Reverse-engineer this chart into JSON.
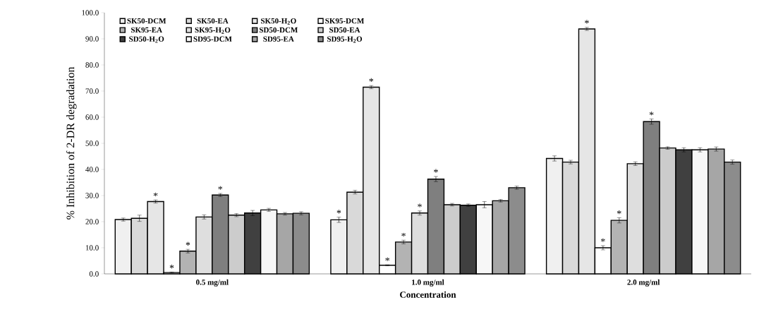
{
  "chart_data": {
    "type": "bar",
    "xlabel": "Concentration",
    "ylabel": "% Inhibition of 2-DR degradation",
    "categories": [
      "0.5 mg/ml",
      "1.0 mg/ml",
      "2.0 mg/ml"
    ],
    "ylim": [
      0,
      100
    ],
    "yticks": [
      {
        "value": 0,
        "label": "0.0"
      },
      {
        "value": 10,
        "label": "10.0"
      },
      {
        "value": 20,
        "label": "20.0"
      },
      {
        "value": 30,
        "label": "30.0"
      },
      {
        "value": 40,
        "label": "40.0"
      },
      {
        "value": 50,
        "label": "50.0"
      },
      {
        "value": 60,
        "label": "60.0"
      },
      {
        "value": 70,
        "label": "70.0"
      },
      {
        "value": 80,
        "label": "80.0"
      },
      {
        "value": 90,
        "label": "90.0"
      },
      {
        "value": 100,
        "label": "100.0"
      }
    ],
    "grid": false,
    "legend": "top left",
    "series": [
      {
        "name": "SK50-DCM",
        "color": "#f0f0f0",
        "values": [
          20.8,
          20.7,
          44.2
        ],
        "errors": [
          0.6,
          1.0,
          1.0
        ],
        "value_labels": [
          null,
          "*",
          null
        ]
      },
      {
        "name": "SK50-EA",
        "color": "#d9d9d9",
        "values": [
          21.3,
          31.3,
          42.8
        ],
        "errors": [
          1.2,
          0.7,
          0.7
        ],
        "value_labels": [
          null,
          null,
          null
        ]
      },
      {
        "name": "SK50-H$_{2}$O",
        "color": "#e6e6e6",
        "values": [
          27.7,
          71.5,
          93.8
        ],
        "errors": [
          0.6,
          0.6,
          0.6
        ],
        "value_labels": [
          "*",
          "*",
          "*"
        ]
      },
      {
        "name": "SK95-DCM",
        "color": "#ffffff",
        "values": [
          0.5,
          3.3,
          10.0
        ],
        "errors": [
          0.2,
          0.2,
          0.8
        ],
        "value_labels": [
          "*",
          "*",
          "*"
        ]
      },
      {
        "name": "SK95-EA",
        "color": "#b3b3b3",
        "values": [
          8.7,
          12.2,
          20.5
        ],
        "errors": [
          0.7,
          0.7,
          1.0
        ],
        "value_labels": [
          "*",
          "*",
          "*"
        ]
      },
      {
        "name": "SK95-H$_{2}$O",
        "color": "#dedede",
        "values": [
          21.8,
          23.3,
          42.2
        ],
        "errors": [
          0.8,
          0.8,
          0.7
        ],
        "value_labels": [
          null,
          "*",
          null
        ]
      },
      {
        "name": "SD50-DCM",
        "color": "#7f7f7f",
        "values": [
          30.2,
          36.3,
          58.3
        ],
        "errors": [
          0.6,
          1.0,
          1.0
        ],
        "value_labels": [
          "*",
          "*",
          "*"
        ]
      },
      {
        "name": "SD50-EA",
        "color": "#cccccc",
        "values": [
          22.5,
          26.5,
          48.2
        ],
        "errors": [
          0.6,
          0.5,
          0.5
        ],
        "value_labels": [
          null,
          null,
          null
        ]
      },
      {
        "name": "SD50-H$_{2}$O",
        "color": "#404040",
        "values": [
          23.3,
          26.3,
          47.5
        ],
        "errors": [
          1.0,
          0.5,
          0.8
        ],
        "value_labels": [
          null,
          null,
          null
        ]
      },
      {
        "name": "SD95-DCM",
        "color": "#f7f7f7",
        "values": [
          24.5,
          26.5,
          47.5
        ],
        "errors": [
          0.6,
          1.2,
          0.8
        ],
        "value_labels": [
          null,
          null,
          null
        ]
      },
      {
        "name": "SD95-EA",
        "color": "#a6a6a6",
        "values": [
          23.0,
          28.0,
          47.8
        ],
        "errors": [
          0.5,
          0.5,
          0.8
        ],
        "value_labels": [
          null,
          null,
          null
        ]
      },
      {
        "name": "SD95-H$_{2}$O",
        "color": "#8c8c8c",
        "values": [
          23.2,
          33.0,
          42.8
        ],
        "errors": [
          0.6,
          0.6,
          0.8
        ],
        "value_labels": [
          null,
          null,
          null
        ]
      }
    ]
  }
}
